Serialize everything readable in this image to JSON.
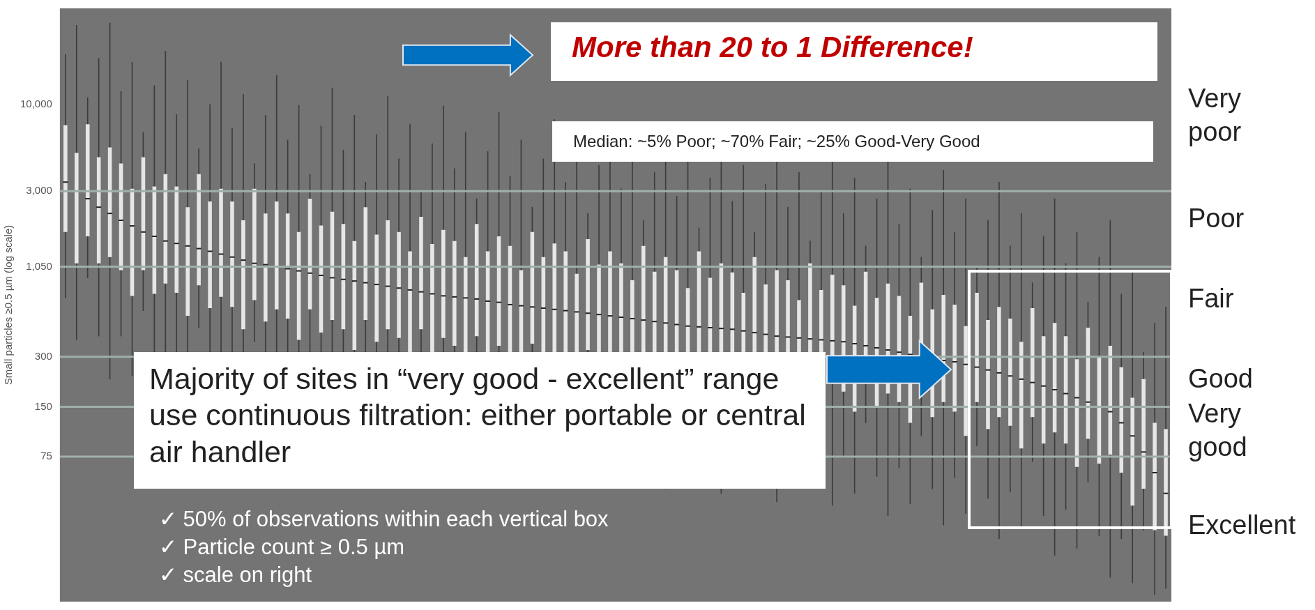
{
  "chart_data": {
    "type": "box",
    "ylabel": "Small particles ≥0.5 µm (log scale)",
    "log": true,
    "grid": false,
    "legend": false,
    "tick_labels": "y",
    "color": "#e6e6e6",
    "ylim": [
      10,
      38000
    ],
    "yticks": [
      75,
      150,
      300,
      {
        "value": 1050,
        "label": "1,050"
      },
      {
        "value": 3000,
        "label": "3,000"
      },
      {
        "value": 10000,
        "label": "10,000"
      }
    ],
    "categories": [
      null,
      null,
      null,
      null,
      null,
      null,
      null,
      null,
      null,
      null,
      null,
      null,
      null,
      null,
      null,
      null,
      null,
      null,
      null,
      null,
      null,
      null,
      null,
      null,
      null,
      null,
      null,
      null,
      null,
      null,
      null,
      null,
      null,
      null,
      null,
      null,
      null,
      null,
      null,
      null,
      null,
      null,
      null,
      null,
      null,
      null,
      null,
      null,
      null,
      null,
      null,
      null,
      null,
      null,
      null,
      null,
      null,
      null,
      null,
      null,
      null,
      null,
      null,
      null,
      null,
      null,
      null,
      null,
      null,
      null,
      null,
      null,
      null,
      null,
      null,
      null,
      null,
      null,
      null,
      null,
      null,
      null,
      null,
      null,
      null,
      null,
      null,
      null,
      null,
      null,
      null,
      null,
      null,
      null,
      null,
      null,
      null,
      null,
      null,
      null
    ],
    "boxes": [
      {
        "low": 680,
        "q1": 1700,
        "median": 3400,
        "q3": 7500,
        "high": 20000
      },
      {
        "low": 380,
        "q1": 1100,
        "median": 3000,
        "q3": 5100,
        "high": 30000
      },
      {
        "low": 900,
        "q1": 1600,
        "median": 2700,
        "q3": 7600,
        "high": 11000
      },
      {
        "low": 400,
        "q1": 1100,
        "median": 2400,
        "q3": 4800,
        "high": 19000
      },
      {
        "low": 220,
        "q1": 1200,
        "median": 2200,
        "q3": 5500,
        "high": 31000
      },
      {
        "low": 400,
        "q1": 1000,
        "median": 2000,
        "q3": 4400,
        "high": 12000
      },
      {
        "low": 230,
        "q1": 700,
        "median": 1850,
        "q3": 3100,
        "high": 18000
      },
      {
        "low": 570,
        "q1": 1000,
        "median": 1700,
        "q3": 4800,
        "high": 6800
      },
      {
        "low": 270,
        "q1": 720,
        "median": 1600,
        "q3": 3200,
        "high": 13000
      },
      {
        "low": 150,
        "q1": 830,
        "median": 1500,
        "q3": 3800,
        "high": 21000
      },
      {
        "low": 290,
        "q1": 730,
        "median": 1450,
        "q3": 3200,
        "high": 8700
      },
      {
        "low": 180,
        "q1": 530,
        "median": 1400,
        "q3": 2400,
        "high": 14000
      },
      {
        "low": 450,
        "q1": 810,
        "median": 1350,
        "q3": 3800,
        "high": 5400
      },
      {
        "low": 220,
        "q1": 590,
        "median": 1300,
        "q3": 2600,
        "high": 10000
      },
      {
        "low": 130,
        "q1": 690,
        "median": 1250,
        "q3": 3100,
        "high": 18000
      },
      {
        "low": 240,
        "q1": 600,
        "median": 1200,
        "q3": 2600,
        "high": 7200
      },
      {
        "low": 140,
        "q1": 440,
        "median": 1150,
        "q3": 2000,
        "high": 11500
      },
      {
        "low": 370,
        "q1": 660,
        "median": 1100,
        "q3": 3100,
        "high": 4400
      },
      {
        "low": 180,
        "q1": 490,
        "median": 1080,
        "q3": 2200,
        "high": 8600
      },
      {
        "low": 105,
        "q1": 580,
        "median": 1050,
        "q3": 2600,
        "high": 15000
      },
      {
        "low": 200,
        "q1": 510,
        "median": 1020,
        "q3": 2200,
        "high": 6100
      },
      {
        "low": 120,
        "q1": 380,
        "median": 990,
        "q3": 1700,
        "high": 9900
      },
      {
        "low": 320,
        "q1": 580,
        "median": 960,
        "q3": 2700,
        "high": 3800
      },
      {
        "low": 155,
        "q1": 420,
        "median": 930,
        "q3": 1860,
        "high": 7400
      },
      {
        "low": 90,
        "q1": 500,
        "median": 900,
        "q3": 2250,
        "high": 12600
      },
      {
        "low": 180,
        "q1": 440,
        "median": 880,
        "q3": 1900,
        "high": 5300
      },
      {
        "low": 110,
        "q1": 330,
        "median": 860,
        "q3": 1500,
        "high": 8600
      },
      {
        "low": 280,
        "q1": 500,
        "median": 840,
        "q3": 2400,
        "high": 3400
      },
      {
        "low": 140,
        "q1": 370,
        "median": 820,
        "q3": 1640,
        "high": 6600
      },
      {
        "low": 80,
        "q1": 440,
        "median": 800,
        "q3": 2000,
        "high": 11200
      },
      {
        "low": 160,
        "q1": 390,
        "median": 780,
        "q3": 1700,
        "high": 4700
      },
      {
        "low": 95,
        "q1": 290,
        "median": 760,
        "q3": 1300,
        "high": 7600
      },
      {
        "low": 250,
        "q1": 440,
        "median": 740,
        "q3": 2100,
        "high": 3000
      },
      {
        "low": 120,
        "q1": 320,
        "median": 720,
        "q3": 1440,
        "high": 5800
      },
      {
        "low": 70,
        "q1": 390,
        "median": 700,
        "q3": 1750,
        "high": 9800
      },
      {
        "low": 140,
        "q1": 350,
        "median": 690,
        "q3": 1500,
        "high": 4100
      },
      {
        "low": 85,
        "q1": 260,
        "median": 680,
        "q3": 1200,
        "high": 6800
      },
      {
        "low": 220,
        "q1": 400,
        "median": 670,
        "q3": 1900,
        "high": 2700
      },
      {
        "low": 110,
        "q1": 290,
        "median": 650,
        "q3": 1300,
        "high": 5200
      },
      {
        "low": 64,
        "q1": 350,
        "median": 640,
        "q3": 1600,
        "high": 9000
      },
      {
        "low": 120,
        "q1": 310,
        "median": 620,
        "q3": 1400,
        "high": 3700
      },
      {
        "low": 76,
        "q1": 230,
        "median": 610,
        "q3": 1000,
        "high": 6100
      },
      {
        "low": 200,
        "q1": 360,
        "median": 600,
        "q3": 1700,
        "high": 2400
      },
      {
        "low": 98,
        "q1": 270,
        "median": 590,
        "q3": 1200,
        "high": 4700
      },
      {
        "low": 58,
        "q1": 320,
        "median": 580,
        "q3": 1450,
        "high": 8100
      },
      {
        "low": 110,
        "q1": 290,
        "median": 570,
        "q3": 1300,
        "high": 3400
      },
      {
        "low": 70,
        "q1": 210,
        "median": 560,
        "q3": 950,
        "high": 5600
      },
      {
        "low": 180,
        "q1": 330,
        "median": 550,
        "q3": 1540,
        "high": 2200
      },
      {
        "low": 90,
        "q1": 240,
        "median": 540,
        "q3": 1080,
        "high": 4300
      },
      {
        "low": 53,
        "q1": 290,
        "median": 530,
        "q3": 1300,
        "high": 7400
      },
      {
        "low": 100,
        "q1": 260,
        "median": 520,
        "q3": 1100,
        "high": 3100
      },
      {
        "low": 64,
        "q1": 190,
        "median": 510,
        "q3": 870,
        "high": 5100
      },
      {
        "low": 170,
        "q1": 300,
        "median": 500,
        "q3": 1400,
        "high": 2000
      },
      {
        "low": 82,
        "q1": 220,
        "median": 490,
        "q3": 980,
        "high": 3900
      },
      {
        "low": 48,
        "q1": 260,
        "median": 480,
        "q3": 1200,
        "high": 6700
      },
      {
        "low": 94,
        "q1": 240,
        "median": 470,
        "q3": 1000,
        "high": 2800
      },
      {
        "low": 58,
        "q1": 175,
        "median": 460,
        "q3": 780,
        "high": 4600
      },
      {
        "low": 150,
        "q1": 270,
        "median": 455,
        "q3": 1300,
        "high": 1800
      },
      {
        "low": 75,
        "q1": 200,
        "median": 450,
        "q3": 900,
        "high": 3600
      },
      {
        "low": 45,
        "q1": 245,
        "median": 445,
        "q3": 1100,
        "high": 6200
      },
      {
        "low": 88,
        "q1": 220,
        "median": 440,
        "q3": 970,
        "high": 2600
      },
      {
        "low": 54,
        "q1": 160,
        "median": 430,
        "q3": 730,
        "high": 4300
      },
      {
        "low": 140,
        "q1": 250,
        "median": 420,
        "q3": 1200,
        "high": 1700
      },
      {
        "low": 68,
        "q1": 185,
        "median": 410,
        "q3": 820,
        "high": 3300
      },
      {
        "low": 40,
        "q1": 220,
        "median": 400,
        "q3": 1000,
        "high": 5600
      },
      {
        "low": 79,
        "q1": 200,
        "median": 395,
        "q3": 870,
        "high": 2400
      },
      {
        "low": 49,
        "q1": 150,
        "median": 390,
        "q3": 660,
        "high": 3900
      },
      {
        "low": 130,
        "q1": 230,
        "median": 385,
        "q3": 1100,
        "high": 1500
      },
      {
        "low": 63,
        "q1": 170,
        "median": 380,
        "q3": 760,
        "high": 3000
      },
      {
        "low": 38,
        "q1": 210,
        "median": 375,
        "q3": 940,
        "high": 5300
      },
      {
        "low": 74,
        "q1": 185,
        "median": 370,
        "q3": 810,
        "high": 2200
      },
      {
        "low": 45,
        "q1": 140,
        "median": 360,
        "q3": 610,
        "high": 3600
      },
      {
        "low": 120,
        "q1": 210,
        "median": 350,
        "q3": 980,
        "high": 1400
      },
      {
        "low": 57,
        "q1": 150,
        "median": 340,
        "q3": 680,
        "high": 2700
      },
      {
        "low": 33,
        "q1": 180,
        "median": 330,
        "q3": 830,
        "high": 4600
      },
      {
        "low": 64,
        "q1": 160,
        "median": 320,
        "q3": 700,
        "high": 1900
      },
      {
        "low": 39,
        "q1": 120,
        "median": 310,
        "q3": 530,
        "high": 3100
      },
      {
        "low": 100,
        "q1": 180,
        "median": 300,
        "q3": 840,
        "high": 1200
      },
      {
        "low": 48,
        "q1": 130,
        "median": 290,
        "q3": 580,
        "high": 2300
      },
      {
        "low": 29,
        "q1": 160,
        "median": 285,
        "q3": 710,
        "high": 4000
      },
      {
        "low": 56,
        "q1": 140,
        "median": 280,
        "q3": 620,
        "high": 1700
      },
      {
        "low": 34,
        "q1": 100,
        "median": 270,
        "q3": 460,
        "high": 2700
      },
      {
        "low": 87,
        "q1": 160,
        "median": 260,
        "q3": 730,
        "high": 1040
      },
      {
        "low": 42,
        "q1": 110,
        "median": 250,
        "q3": 500,
        "high": 2000
      },
      {
        "low": 24,
        "q1": 130,
        "median": 240,
        "q3": 600,
        "high": 3400
      },
      {
        "low": 46,
        "q1": 115,
        "median": 230,
        "q3": 510,
        "high": 1400
      },
      {
        "low": 28,
        "q1": 84,
        "median": 220,
        "q3": 370,
        "high": 2200
      },
      {
        "low": 70,
        "q1": 130,
        "median": 210,
        "q3": 590,
        "high": 840
      },
      {
        "low": 33,
        "q1": 90,
        "median": 200,
        "q3": 400,
        "high": 1600
      },
      {
        "low": 19,
        "q1": 105,
        "median": 190,
        "q3": 480,
        "high": 2700
      },
      {
        "low": 36,
        "q1": 90,
        "median": 180,
        "q3": 400,
        "high": 1100
      },
      {
        "low": 21,
        "q1": 65,
        "median": 170,
        "q3": 290,
        "high": 1700
      },
      {
        "low": 53,
        "q1": 96,
        "median": 160,
        "q3": 450,
        "high": 640
      },
      {
        "low": 25,
        "q1": 68,
        "median": 150,
        "q3": 300,
        "high": 1200
      },
      {
        "low": 14,
        "q1": 77,
        "median": 140,
        "q3": 350,
        "high": 2000
      },
      {
        "low": 24,
        "q1": 60,
        "median": 120,
        "q3": 260,
        "high": 720
      },
      {
        "low": 13,
        "q1": 38,
        "median": 100,
        "q3": 170,
        "high": 1000
      },
      {
        "low": 27,
        "q1": 48,
        "median": 80,
        "q3": 220,
        "high": 320
      },
      {
        "low": 11,
        "q1": 27,
        "median": 60,
        "q3": 120,
        "high": 480
      },
      {
        "low": 12,
        "q1": 25,
        "median": 45,
        "q3": 110,
        "high": 600
      }
    ],
    "ref_lines": [
      {
        "axis": "y",
        "value": 3000,
        "color": "#9fb0a8"
      },
      {
        "axis": "y",
        "value": 1050,
        "color": "#9fb0a8"
      },
      {
        "axis": "y",
        "value": 300,
        "color": "#9fb0a8"
      },
      {
        "axis": "y",
        "value": 150,
        "color": "#9fb0a8"
      },
      {
        "axis": "y",
        "value": 75,
        "color": "#9fb0a8"
      }
    ],
    "annotations": [
      "More than 20 to 1 Difference!",
      "Median: ~5% Poor; ~70% Fair; ~25% Good-Very Good",
      "Majority of sites in “very good - excellent” range use continuous filtration: either portable or central air handler",
      "✓  50% of observations within each vertical box",
      "✓  Particle count ≥ 0.5 µm",
      "✓  scale on right",
      "Very poor",
      "Poor",
      "Fair",
      "Good",
      "Very good",
      "Excellent"
    ]
  }
}
